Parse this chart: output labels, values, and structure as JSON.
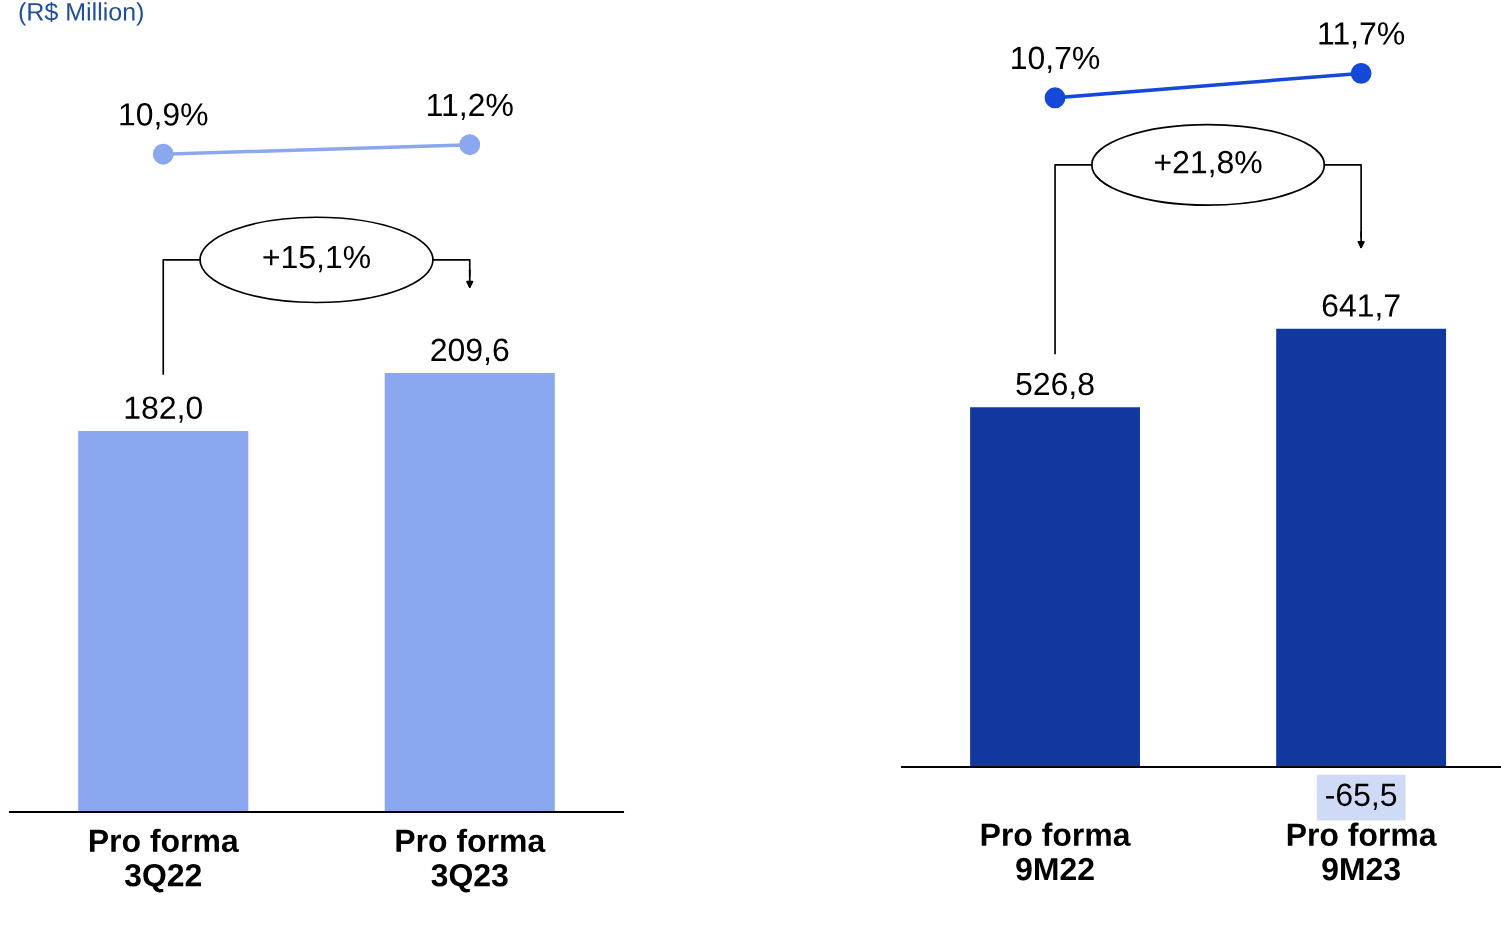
{
  "chart_data": [
    {
      "type": "line",
      "title": "(R$ Million)",
      "categories": [
        null,
        null
      ],
      "color": "#8ba7f0",
      "marker": "circle",
      "values": [
        10.9,
        11.2
      ],
      "value_labels": [
        "10,9%",
        "11,2%"
      ]
    },
    {
      "type": "bar",
      "categories": [
        "Pro forma\n3Q22",
        "Pro forma\n3Q23"
      ],
      "tick_labels": "x",
      "color": "#8ba7f0",
      "values": [
        182.0,
        209.6
      ],
      "value_labels": [
        "182,0",
        "209,6"
      ],
      "annotations": [
        "+15,1%"
      ]
    },
    {
      "type": "line",
      "categories": [
        null,
        null
      ],
      "color": "#1448d8",
      "marker": "circle",
      "values": [
        10.7,
        11.7
      ],
      "value_labels": [
        "10,7%",
        "11,7%"
      ]
    },
    {
      "type": "bar",
      "categories": [
        "Pro forma\n9M22",
        "Pro forma\n9M23"
      ],
      "tick_labels": "x",
      "color": "#11389e",
      "values": [
        526.8,
        641.7
      ],
      "value_labels": [
        "526,8",
        "641,7"
      ],
      "annotations": [
        "+21,8%",
        "-65,5"
      ]
    }
  ]
}
